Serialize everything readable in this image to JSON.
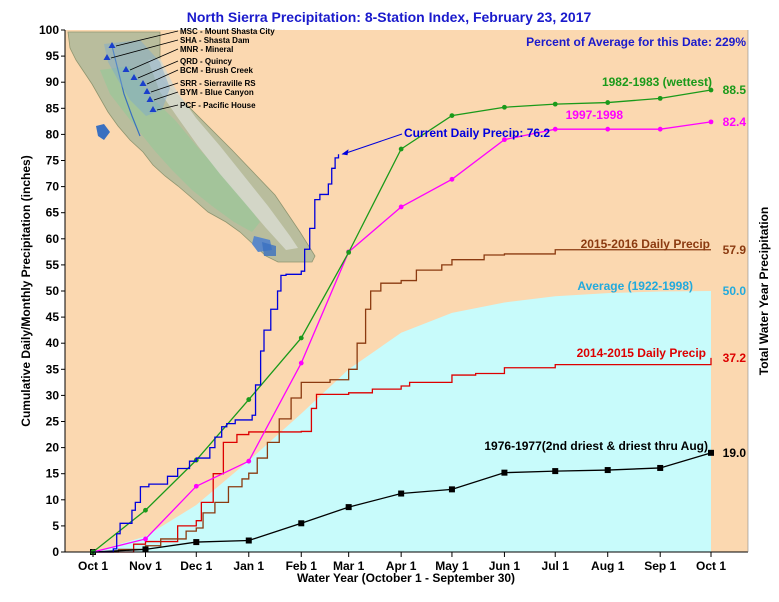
{
  "chart_data": {
    "type": "line",
    "title": "North Sierra Precipitation: 8-Station Index, February 23, 2017",
    "subtitle": "Percent of Average for this Date: 229%",
    "xlabel": "Water Year (October 1 - September 30)",
    "ylabel": "Cumulative Daily/Monthly Precipitation (inches)",
    "ylabel_right": "Total Water Year Precipitation",
    "ylim": [
      0,
      100
    ],
    "yticks": [
      0,
      5,
      10,
      15,
      20,
      25,
      30,
      35,
      40,
      45,
      50,
      55,
      60,
      65,
      70,
      75,
      80,
      85,
      90,
      95,
      100
    ],
    "x_tick_labels": [
      "Oct 1",
      "Nov 1",
      "Dec 1",
      "Jan 1",
      "Feb 1",
      "Mar 1",
      "Apr 1",
      "May 1",
      "Jun 1",
      "Jul 1",
      "Aug 1",
      "Sep 1",
      "Oct 1"
    ],
    "grid": false,
    "colors": {
      "background": "#fbd8b0",
      "average_fill": "#c8fbfb",
      "current": "#0000dd",
      "wettest": "#1a9a1a",
      "y1997": "#ff00ff",
      "y2015": "#8b3a10",
      "y2014": "#dd0000",
      "driest": "#000000",
      "average_label": "#22aadd",
      "title": "#1a1acc"
    },
    "series": [
      {
        "name": "1982-1983 (wettest)",
        "kind": "monthly",
        "x": [
          "Oct 1",
          "Nov 1",
          "Dec 1",
          "Jan 1",
          "Feb 1",
          "Mar 1",
          "Apr 1",
          "May 1",
          "Jun 1",
          "Jul 1",
          "Aug 1",
          "Sep 1",
          "Oct 1"
        ],
        "values": [
          0.0,
          8.0,
          17.6,
          29.2,
          41.0,
          57.4,
          77.2,
          83.6,
          85.2,
          85.8,
          86.1,
          86.9,
          88.5
        ],
        "end_value": "88.5"
      },
      {
        "name": "1997-1998",
        "kind": "monthly",
        "x": [
          "Oct 1",
          "Nov 1",
          "Dec 1",
          "Jan 1",
          "Feb 1",
          "Mar 1",
          "Apr 1",
          "May 1",
          "Jun 1",
          "Jul 1",
          "Aug 1",
          "Sep 1",
          "Oct 1"
        ],
        "values": [
          0.0,
          2.5,
          12.6,
          17.4,
          36.2,
          57.5,
          66.1,
          71.4,
          79.0,
          81.0,
          81.0,
          81.0,
          82.4
        ],
        "end_value": "82.4"
      },
      {
        "name": "1976-1977(2nd driest & driest thru Aug)",
        "kind": "monthly",
        "x": [
          "Oct 1",
          "Nov 1",
          "Dec 1",
          "Jan 1",
          "Feb 1",
          "Mar 1",
          "Apr 1",
          "May 1",
          "Jun 1",
          "Jul 1",
          "Aug 1",
          "Sep 1",
          "Oct 1"
        ],
        "values": [
          0.0,
          0.5,
          1.9,
          2.2,
          5.5,
          8.6,
          11.2,
          12.0,
          15.2,
          15.5,
          15.7,
          16.1,
          19.0
        ],
        "end_value": "19.0"
      },
      {
        "name": "Average (1922-1998)",
        "kind": "area",
        "x": [
          "Oct 1",
          "Nov 1",
          "Dec 1",
          "Jan 1",
          "Feb 1",
          "Mar 1",
          "Apr 1",
          "May 1",
          "Jun 1",
          "Jul 1",
          "Aug 1",
          "Sep 1",
          "Oct 1"
        ],
        "values": [
          0.0,
          3.0,
          9.0,
          17.5,
          26.5,
          35.0,
          42.0,
          45.8,
          47.8,
          49.0,
          49.6,
          49.9,
          50.0
        ],
        "end_value": "50.0"
      },
      {
        "name": "2015-2016 Daily Precip",
        "kind": "daily",
        "x": [
          "Oct 1",
          "Oct 16",
          "Nov 1",
          "Nov 10",
          "Nov 25",
          "Dec 1",
          "Dec 5",
          "Dec 12",
          "Dec 20",
          "Dec 28",
          "Jan 1",
          "Jan 6",
          "Jan 12",
          "Jan 19",
          "Jan 26",
          "Feb 1",
          "Feb 18",
          "Mar 1",
          "Mar 6",
          "Mar 11",
          "Mar 14",
          "Mar 20",
          "Apr 1",
          "Apr 10",
          "Apr 25",
          "May 1",
          "May 20",
          "Jun 1",
          "Jul 1",
          "Oct 1"
        ],
        "values": [
          0.0,
          0.5,
          1.2,
          2.5,
          4.0,
          4.6,
          7.5,
          9.5,
          12.5,
          14.0,
          15.1,
          18.0,
          21.0,
          25.5,
          29.5,
          32.5,
          33.0,
          35.0,
          40.0,
          46.5,
          50.0,
          51.5,
          52.0,
          54.0,
          55.0,
          56.0,
          56.9,
          57.1,
          57.9,
          57.9
        ],
        "end_value": "57.9"
      },
      {
        "name": "2014-2015 Daily Precip",
        "kind": "daily",
        "x": [
          "Oct 1",
          "Oct 25",
          "Nov 1",
          "Nov 20",
          "Dec 1",
          "Dec 4",
          "Dec 11",
          "Dec 17",
          "Dec 25",
          "Jan 1",
          "Feb 1",
          "Feb 7",
          "Feb 10",
          "Mar 1",
          "Mar 15",
          "Apr 1",
          "Apr 6",
          "May 1",
          "May 15",
          "Jun 1",
          "Jul 1",
          "Oct 1"
        ],
        "values": [
          0.0,
          1.5,
          2.0,
          5.0,
          6.0,
          9.5,
          15.0,
          21.0,
          22.5,
          23.0,
          23.1,
          27.5,
          30.2,
          30.5,
          31.2,
          31.8,
          32.5,
          33.9,
          34.2,
          35.3,
          35.9,
          37.2
        ],
        "end_value": "37.2"
      },
      {
        "name": "Current Daily Precip",
        "kind": "daily",
        "x": [
          "Oct 1",
          "Oct 13",
          "Oct 15",
          "Oct 17",
          "Oct 24",
          "Oct 26",
          "Oct 29",
          "Nov 3",
          "Nov 14",
          "Nov 20",
          "Nov 27",
          "Dec 1",
          "Dec 9",
          "Dec 12",
          "Dec 16",
          "Dec 19",
          "Dec 24",
          "Jan 3",
          "Jan 5",
          "Jan 8",
          "Jan 10",
          "Jan 14",
          "Jan 18",
          "Jan 20",
          "Jan 23",
          "Feb 1",
          "Feb 3",
          "Feb 6",
          "Feb 9",
          "Feb 12",
          "Feb 17",
          "Feb 19",
          "Feb 21",
          "Feb 23"
        ],
        "values": [
          0.0,
          0.6,
          3.5,
          5.5,
          8.0,
          9.5,
          12.5,
          13.0,
          14.5,
          16.0,
          17.4,
          18.0,
          20.0,
          22.0,
          24.0,
          24.6,
          25.3,
          26.2,
          32.0,
          38.5,
          42.5,
          46.5,
          50.0,
          53.0,
          53.2,
          53.8,
          58.0,
          62.0,
          67.5,
          68.5,
          70.5,
          73.5,
          75.5,
          76.2
        ],
        "annotation": "Current Daily Precip: 76.2"
      }
    ]
  },
  "map_legend": {
    "stations": [
      "MSC - Mount Shasta City",
      "SHA - Shasta Dam",
      "MNR - Mineral",
      "QRD - Quincy",
      "BCM - Brush Creek",
      "SRR - Sierraville RS",
      "BYM - Blue Canyon",
      "PCF - Pacific House"
    ]
  }
}
